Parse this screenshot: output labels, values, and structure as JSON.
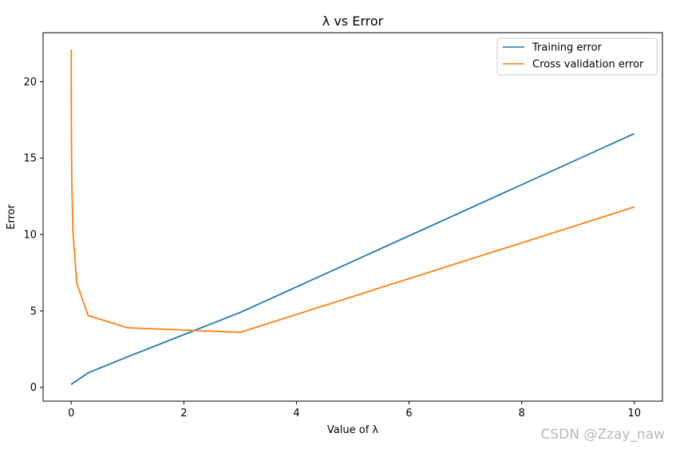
{
  "chart_data": {
    "type": "line",
    "title": "λ vs Error",
    "xlabel": "Value of λ",
    "ylabel": "Error",
    "xlim": [
      -0.5,
      10.5
    ],
    "ylim": [
      -0.9,
      23.2
    ],
    "xticks": [
      0,
      2,
      4,
      6,
      8,
      10
    ],
    "yticks": [
      0,
      5,
      10,
      15,
      20
    ],
    "grid": false,
    "legend_position": "top-right",
    "series": [
      {
        "name": "Training error",
        "color": "#1f77b4",
        "x": [
          0,
          0.001,
          0.003,
          0.01,
          0.03,
          0.1,
          0.3,
          1,
          3,
          10
        ],
        "y": [
          0.2,
          0.2,
          0.21,
          0.22,
          0.28,
          0.45,
          0.95,
          2.0,
          4.9,
          16.6
        ]
      },
      {
        "name": "Cross validation error",
        "color": "#ff7f0e",
        "x": [
          0,
          0.001,
          0.003,
          0.01,
          0.03,
          0.1,
          0.3,
          1,
          3,
          10
        ],
        "y": [
          22.1,
          18.5,
          16.5,
          13.5,
          10.2,
          6.8,
          4.7,
          3.9,
          3.6,
          11.8
        ]
      }
    ]
  },
  "watermark": "CSDN @Zzay_naw"
}
